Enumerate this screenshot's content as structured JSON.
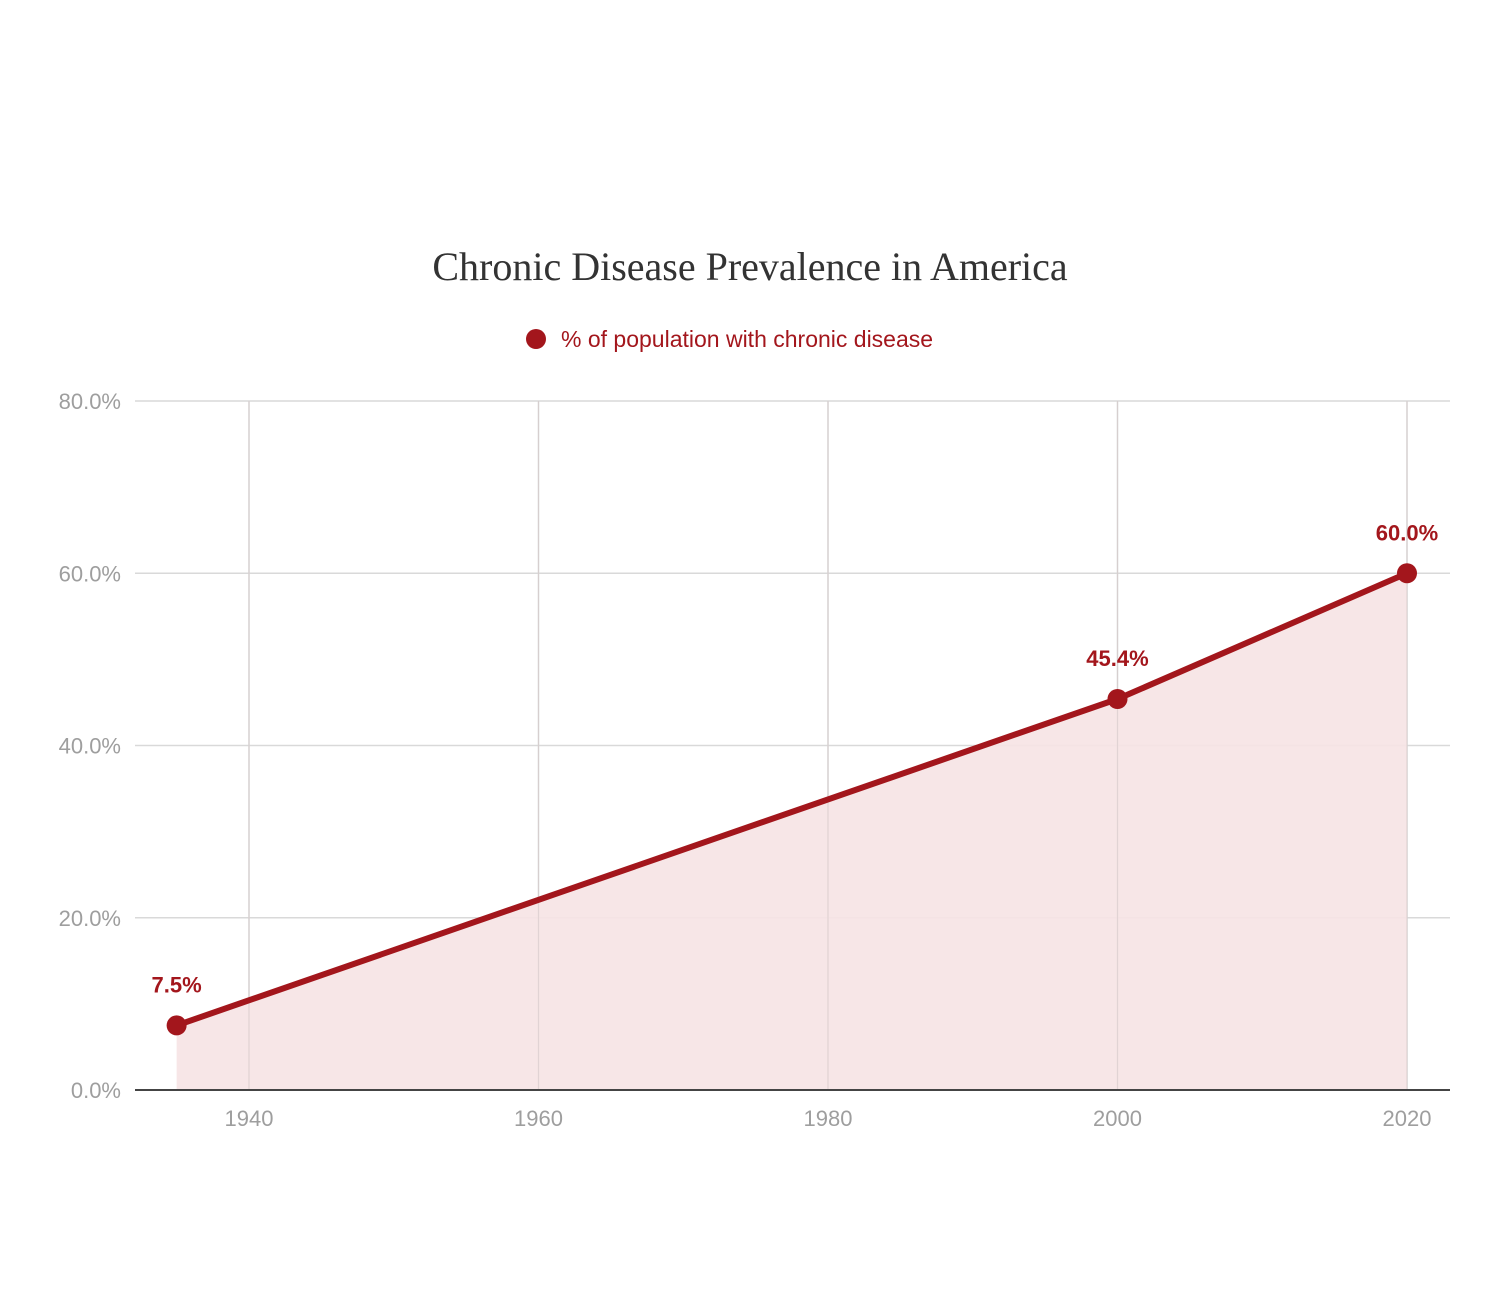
{
  "chart_data": {
    "type": "area",
    "title": "Chronic Disease Prevalence in America",
    "xlabel": "",
    "ylabel": "",
    "x_ticks": [
      "1940",
      "1960",
      "1980",
      "2000",
      "2020"
    ],
    "x_tick_values": [
      1940,
      1960,
      1980,
      2000,
      2020
    ],
    "y_ticks": [
      "0.0%",
      "20.0%",
      "40.0%",
      "60.0%",
      "80.0%"
    ],
    "y_tick_values": [
      0,
      20,
      40,
      60,
      80
    ],
    "xlim": [
      1927,
      2021.5
    ],
    "ylim": [
      0,
      80
    ],
    "grid": true,
    "legend_position": "top-center",
    "series": [
      {
        "name": "% of population with chronic disease",
        "color": "#a3161c",
        "fill_color": "#f6e3e4",
        "x": [
          1935,
          2000,
          2020
        ],
        "values": [
          7.5,
          45.4,
          60.0
        ],
        "labels": [
          "7.5%",
          "45.4%",
          "60.0%"
        ]
      }
    ]
  }
}
